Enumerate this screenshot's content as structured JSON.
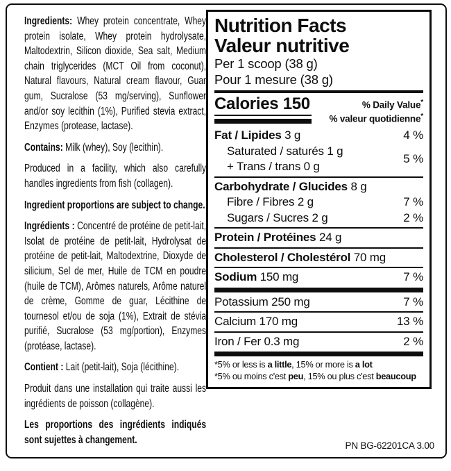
{
  "ingredients": {
    "paragraphs": [
      {
        "label": "Ingredients:",
        "text": " Whey protein concentrate, Whey protein isolate, Whey protein hydrolysate, Maltodextrin, Silicon dioxide, Sea salt, Medium chain triglycerides (MCT Oil from coconut), Natural flavours, Natural cream flavour, Guar gum, Sucralose (53 mg/serving), Sunflower and/or soy lecithin (1%), Purified stevia extract, Enzymes (protease, lactase)."
      },
      {
        "label": "Contains:",
        "text": " Milk (whey), Soy (lecithin)."
      },
      {
        "label": "",
        "text": "Produced in a facility, which also carefully handles ingredients from fish (collagen)."
      },
      {
        "label": "Ingredient proportions are subject to change.",
        "text": ""
      },
      {
        "label": "Ingrédients :",
        "text": " Concentré de protéine de petit-lait, Isolat de protéine de petit-lait, Hydrolysat de protéine de petit-lait, Maltodextrine, Dioxyde de silicium, Sel de mer, Huile de TCM en poudre (huile de TCM), Arômes naturels, Arôme naturel de crème, Gomme de guar, Lécithine de tournesol et/ou de soja (1%), Extrait de stévia purifié, Sucralose (53 mg/portion), Enzymes (protéase, lactase)."
      },
      {
        "label": "Contient :",
        "text": " Lait (petit-lait), Soja (lécithine)."
      },
      {
        "label": "",
        "text": "Produit dans une installation qui traite aussi les ingrédients de poisson (collagène)."
      },
      {
        "label": "Les proportions des ingrédients indiqués sont sujettes à changement.",
        "text": ""
      }
    ]
  },
  "nutrition": {
    "title_en": "Nutrition Facts",
    "title_fr": "Valeur nutritive",
    "serving_en": "Per 1 scoop (38 g)",
    "serving_fr": "Pour 1 mesure (38 g)",
    "calories": {
      "label": "Calories",
      "value": "150"
    },
    "dv_header_en": "% Daily Value",
    "dv_header_fr": "% valeur quotidienne",
    "dv_star": "*",
    "fat": {
      "bold": "Fat / Lipides",
      "rest": "3 g",
      "dv": "4 %",
      "sub1": "Saturated / saturés 1 g",
      "sub2": "+ Trans / trans 0 g",
      "sub_dv": "5 %"
    },
    "carbohydrate": {
      "bold": "Carbohydrate / Glucides",
      "rest": "8 g",
      "sub1": {
        "text": "Fibre / Fibres 2 g",
        "dv": "7 %"
      },
      "sub2": {
        "text": "Sugars / Sucres 2 g",
        "dv": "2 %"
      }
    },
    "protein": {
      "bold": "Protein / Protéines",
      "rest": "24 g"
    },
    "cholesterol": {
      "bold": "Cholesterol / Cholestérol",
      "rest": "70 mg"
    },
    "sodium": {
      "bold": "Sodium",
      "rest": "150 mg",
      "dv": "7 %"
    },
    "potassium": {
      "text": "Potassium 250 mg",
      "dv": "7 %"
    },
    "calcium": {
      "text": "Calcium 170 mg",
      "dv": "13 %"
    },
    "iron": {
      "text": "Iron / Fer 0.3 mg",
      "dv": "2 %"
    },
    "footnote_en": {
      "p1": "*5% or less is ",
      "b1": "a little",
      "p2": ", 15% or more is ",
      "b2": "a lot"
    },
    "footnote_fr": {
      "p1": "*5% ou moins c'est ",
      "b1": "peu",
      "p2": ", 15% ou plus c'est ",
      "b2": "beaucoup"
    }
  },
  "footer": {
    "part_number": "PN BG-62201CA 3.00"
  }
}
